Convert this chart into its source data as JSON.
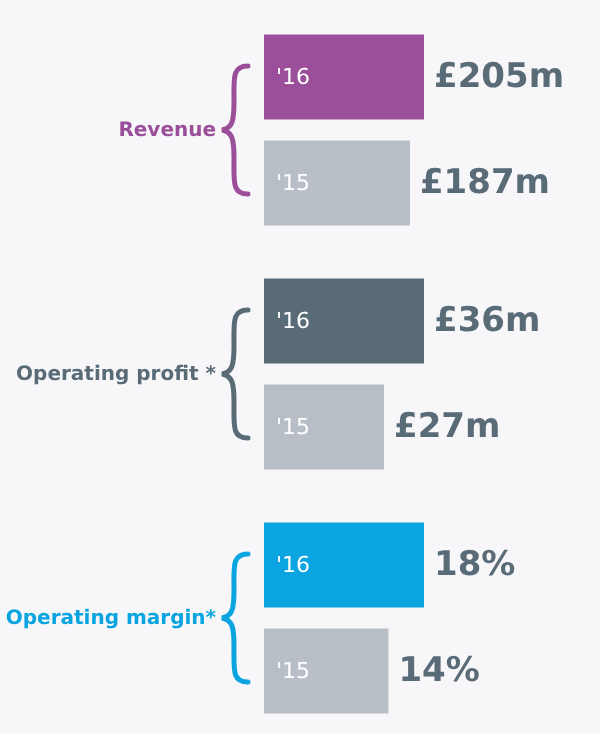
{
  "chart_data": [
    {
      "type": "bar",
      "orientation": "horizontal",
      "ylabel": "Revenue",
      "categories": [
        "'16",
        "'15"
      ],
      "values": [
        205,
        187
      ],
      "colors": [
        "#9b4f9b",
        "#b8bec6"
      ],
      "value_labels": [
        "£205m",
        "£187m"
      ],
      "tick_labels": "y"
    },
    {
      "type": "bar",
      "orientation": "horizontal",
      "ylabel": "Operating profit *",
      "categories": [
        "'16",
        "'15"
      ],
      "values": [
        36,
        27
      ],
      "colors": [
        "#5a6b78",
        "#b8bec6"
      ],
      "value_labels": [
        "£36m",
        "£27m"
      ],
      "tick_labels": "y"
    },
    {
      "type": "bar",
      "orientation": "horizontal",
      "ylabel": "Operating margin*",
      "categories": [
        "'16",
        "'15"
      ],
      "values": [
        18,
        14
      ],
      "colors": [
        "#0aa5e0",
        "#b8bec6"
      ],
      "value_labels": [
        "18%",
        "14%"
      ],
      "tick_labels": "y"
    }
  ]
}
